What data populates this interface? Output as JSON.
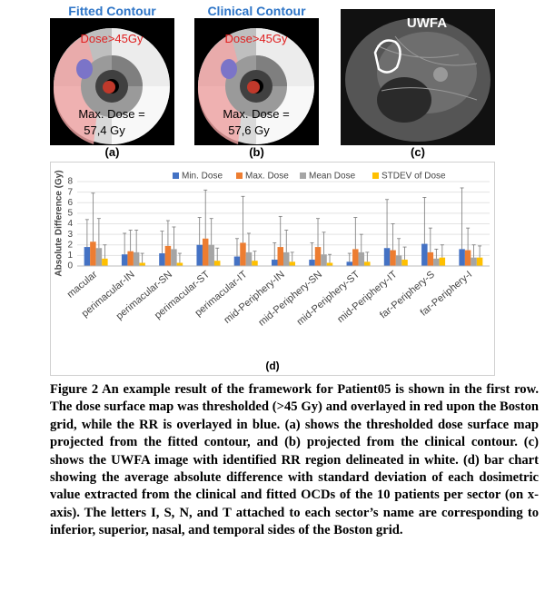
{
  "panels": [
    {
      "title": "Fitted Contour",
      "threshold": "Dose>45Gy",
      "max_label": "Max. Dose =",
      "max_value": "57,4 Gy",
      "label": "(a)"
    },
    {
      "title": "Clinical Contour",
      "threshold": "Dose>45Gy",
      "max_label": "Max. Dose =",
      "max_value": "57,6 Gy",
      "label": "(b)"
    },
    {
      "title": "UWFA",
      "label": "(c)"
    }
  ],
  "chart_data": {
    "type": "bar",
    "label": "(d)",
    "y_label": "Absolute Difference (Gy)",
    "categories": [
      "macular",
      "perimacular-IN",
      "perimacular-SN",
      "perimacular-ST",
      "perimacular-IT",
      "mid-Periphery-IN",
      "mid-Periphery-SN",
      "mid-Periphery-ST",
      "mid-Periphery-IT",
      "far-Periphery-S",
      "far-Periphery-I"
    ],
    "series": [
      {
        "name": "Min. Dose",
        "color": "#4472c4",
        "values": [
          1.8,
          1.1,
          1.2,
          2.0,
          0.9,
          0.6,
          0.6,
          0.4,
          1.7,
          2.1,
          1.6
        ],
        "errors": [
          2.6,
          2.0,
          2.1,
          2.6,
          1.7,
          1.6,
          1.6,
          0.8,
          4.6,
          4.4,
          5.8
        ]
      },
      {
        "name": "Max. Dose",
        "color": "#ed7d31",
        "values": [
          2.3,
          1.4,
          1.9,
          2.6,
          2.2,
          1.8,
          1.8,
          1.6,
          1.5,
          1.3,
          1.5
        ],
        "errors": [
          4.6,
          2.0,
          2.4,
          4.6,
          4.4,
          2.9,
          2.7,
          3.0,
          2.5,
          2.3,
          2.1
        ]
      },
      {
        "name": "Mean Dose",
        "color": "#a5a5a5",
        "values": [
          1.7,
          1.3,
          1.6,
          2.0,
          1.3,
          1.3,
          1.1,
          1.3,
          1.0,
          0.7,
          0.8
        ],
        "errors": [
          2.8,
          2.1,
          2.1,
          2.5,
          1.8,
          2.1,
          2.1,
          1.7,
          1.6,
          0.9,
          1.2
        ]
      },
      {
        "name": "STDEV of Dose",
        "color": "#ffc000",
        "values": [
          0.7,
          0.3,
          0.3,
          0.5,
          0.5,
          0.4,
          0.3,
          0.4,
          0.6,
          0.8,
          0.8
        ],
        "errors": [
          1.3,
          0.9,
          0.9,
          1.2,
          0.9,
          0.9,
          0.8,
          0.9,
          1.2,
          1.2,
          1.1
        ]
      }
    ],
    "ylim": [
      0,
      8
    ],
    "yticks": [
      0,
      1,
      2,
      3,
      4,
      5,
      6,
      7,
      8
    ],
    "grid": true,
    "legend": "top"
  },
  "caption": "Figure 2 An example result of the framework for Patient05 is shown in the first row. The dose surface map was thresholded (>45 Gy) and overlayed in red upon the Boston grid, while the RR is overlayed in blue. (a) shows the thresholded dose surface map projected from the fitted contour, and (b) projected from the clinical contour. (c) shows the UWFA image with identified RR region delineated in white. (d) bar chart showing the average absolute difference with standard deviation of each dosimetric value extracted from the clinical and fitted OCDs of the 10 patients per sector (on x-axis). The letters I, S, N, and T attached to each sector’s name are corresponding to inferior, superior, nasal, and temporal sides of the Boston grid."
}
